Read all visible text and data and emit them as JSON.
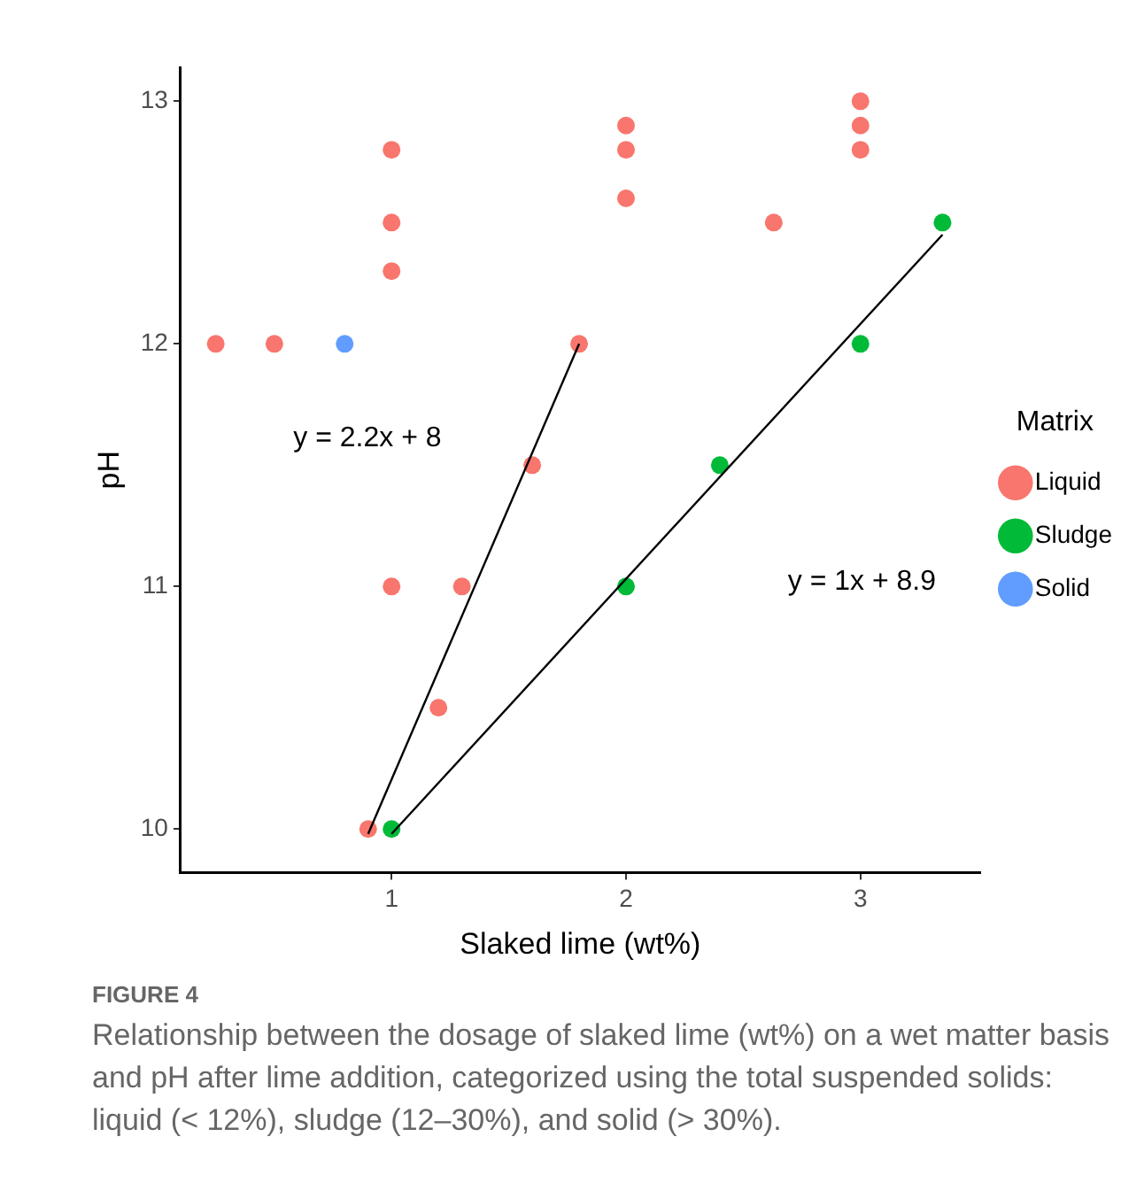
{
  "chart_data": {
    "type": "scatter",
    "xlabel": "Slaked lime (wt%)",
    "ylabel": "pH",
    "legend_title": "Matrix",
    "legend": "right",
    "grid": false,
    "marker": "circle",
    "xlim": [
      0.1,
      3.51
    ],
    "xticks": [
      1,
      2,
      3
    ],
    "ylim": [
      9.82,
      13.14
    ],
    "yticks": [
      10,
      11,
      12,
      13
    ],
    "series": [
      {
        "name": "Liquid",
        "color": "#f8766d",
        "x": [
          0.25,
          0.5,
          1,
          1,
          1,
          1,
          1.3,
          1.2,
          0.9,
          1.8,
          1.6,
          2,
          2,
          2,
          2.63,
          3,
          3,
          3
        ],
        "values": [
          12,
          12,
          12.8,
          12.5,
          12.3,
          11,
          11,
          10.5,
          10,
          12,
          11.5,
          12.9,
          12.8,
          12.6,
          12.5,
          13,
          12.9,
          12.8
        ]
      },
      {
        "name": "Sludge",
        "color": "#00ba38",
        "x": [
          1,
          2,
          2.4,
          3,
          3.35
        ],
        "values": [
          10,
          11,
          11.5,
          12,
          12.5
        ]
      },
      {
        "name": "Solid",
        "color": "#619cff",
        "x": [
          0.8
        ],
        "values": [
          12
        ]
      },
      {
        "type": "line",
        "color": "#000000",
        "marker": "none",
        "x": [
          0.9,
          1.8
        ],
        "values": [
          9.98,
          12
        ]
      },
      {
        "type": "line",
        "color": "#000000",
        "marker": "none",
        "x": [
          1,
          3.35
        ],
        "values": [
          9.98,
          12.45
        ]
      }
    ],
    "annotations": [
      "y = 2.2x + 8",
      "y = 1x + 8.9",
      "FIGURE 4",
      "Relationship between the dosage of slaked lime (wt%) on a wet matter basis and pH after lime addition, categorized using the total suspended solids: liquid (< 12%), sludge (12–30%), and solid (> 30%)."
    ]
  }
}
